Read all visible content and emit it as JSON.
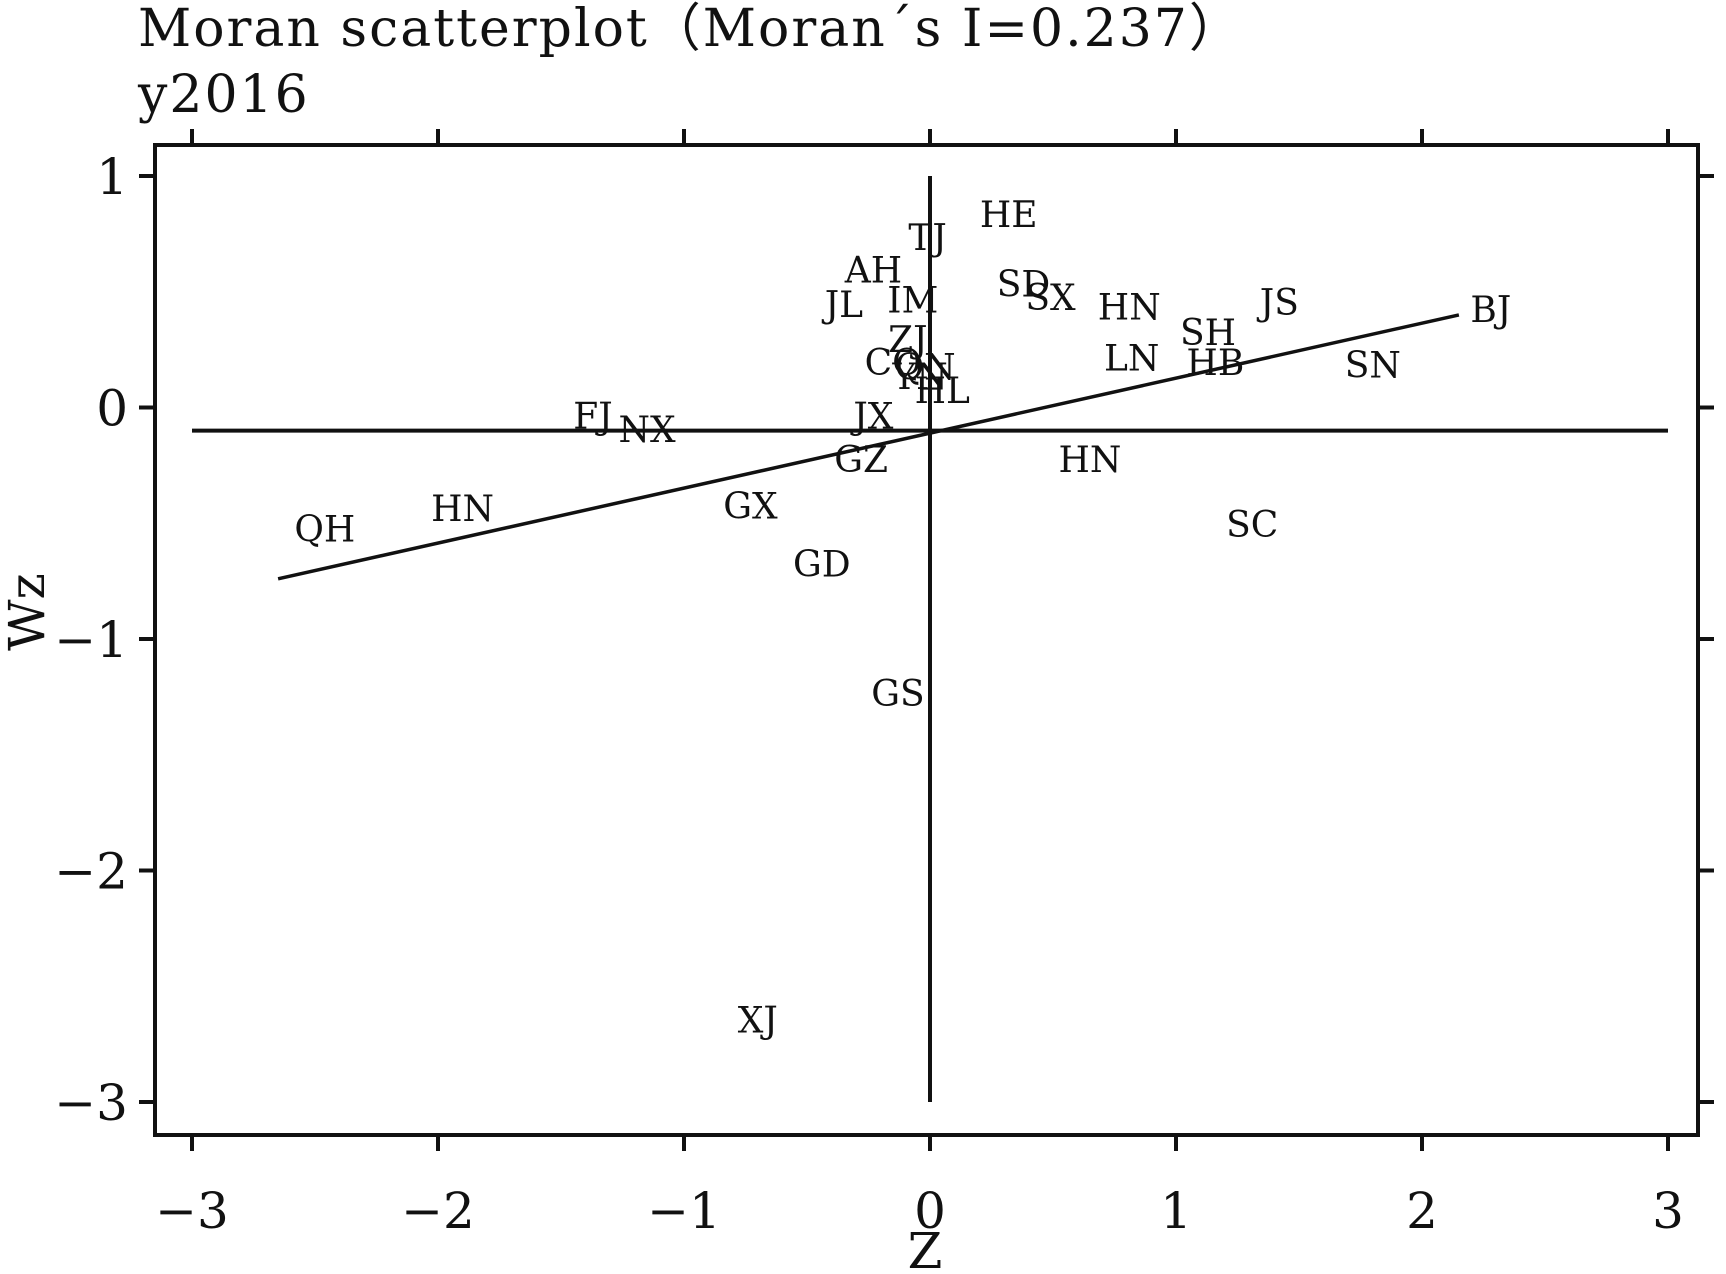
{
  "chart_data": {
    "type": "scatter",
    "title": "Moran  scatterplot（Moran´s I=0.237）",
    "subtitle": "y2016",
    "xlabel": "Z",
    "ylabel": "Wz",
    "xlim": [
      -3.0,
      3.0
    ],
    "ylim": [
      -3.0,
      1.0
    ],
    "xticks": [
      -3,
      -2,
      -1,
      0,
      1,
      2,
      3
    ],
    "xtick_labels": [
      "−3",
      "−2",
      "−1",
      "0",
      "1",
      "2",
      "3"
    ],
    "yticks": [
      1,
      0,
      -1,
      -2,
      -3
    ],
    "ytick_labels": [
      "1",
      "0",
      "−1",
      "−2",
      "−3"
    ],
    "grid": false,
    "reference_lines": {
      "vertical_x": 0.0,
      "horizontal_y": -0.1
    },
    "fit_line": {
      "x": [
        -2.65,
        2.15
      ],
      "y": [
        -0.74,
        0.4
      ]
    },
    "points": [
      {
        "label": "HE",
        "x": 0.32,
        "y": 0.83
      },
      {
        "label": "TJ",
        "x": -0.01,
        "y": 0.73
      },
      {
        "label": "AH",
        "x": -0.23,
        "y": 0.59
      },
      {
        "label": "SD",
        "x": 0.38,
        "y": 0.53
      },
      {
        "label": "SX",
        "x": 0.49,
        "y": 0.47
      },
      {
        "label": "JL",
        "x": -0.35,
        "y": 0.44
      },
      {
        "label": "IM",
        "x": -0.07,
        "y": 0.46
      },
      {
        "label": "HN",
        "x": 0.81,
        "y": 0.43
      },
      {
        "label": "JS",
        "x": 1.42,
        "y": 0.45
      },
      {
        "label": "BJ",
        "x": 2.28,
        "y": 0.42
      },
      {
        "label": "SH",
        "x": 1.13,
        "y": 0.32
      },
      {
        "label": "ZJ",
        "x": -0.09,
        "y": 0.29
      },
      {
        "label": "LN",
        "x": 0.82,
        "y": 0.21
      },
      {
        "label": "HB",
        "x": 1.16,
        "y": 0.19
      },
      {
        "label": "SN",
        "x": 1.8,
        "y": 0.18
      },
      {
        "label": "CQ",
        "x": -0.15,
        "y": 0.19
      },
      {
        "label": "QN",
        "x": -0.02,
        "y": 0.17
      },
      {
        "label": "YN",
        "x": -0.04,
        "y": 0.13
      },
      {
        "label": "HL",
        "x": 0.05,
        "y": 0.07
      },
      {
        "label": "FJ",
        "x": -1.37,
        "y": -0.04
      },
      {
        "label": "JX",
        "x": -0.23,
        "y": -0.04
      },
      {
        "label": "NX",
        "x": -1.15,
        "y": -0.1
      },
      {
        "label": "GZ",
        "x": -0.28,
        "y": -0.23
      },
      {
        "label": "HN",
        "x": 0.65,
        "y": -0.23
      },
      {
        "label": "HN",
        "x": -1.9,
        "y": -0.44
      },
      {
        "label": "GX",
        "x": -0.73,
        "y": -0.43
      },
      {
        "label": "QH",
        "x": -2.46,
        "y": -0.53
      },
      {
        "label": "SC",
        "x": 1.31,
        "y": -0.51
      },
      {
        "label": "GD",
        "x": -0.44,
        "y": -0.68
      },
      {
        "label": "GS",
        "x": -0.13,
        "y": -1.24
      },
      {
        "label": "XJ",
        "x": -0.7,
        "y": -2.65
      }
    ]
  }
}
